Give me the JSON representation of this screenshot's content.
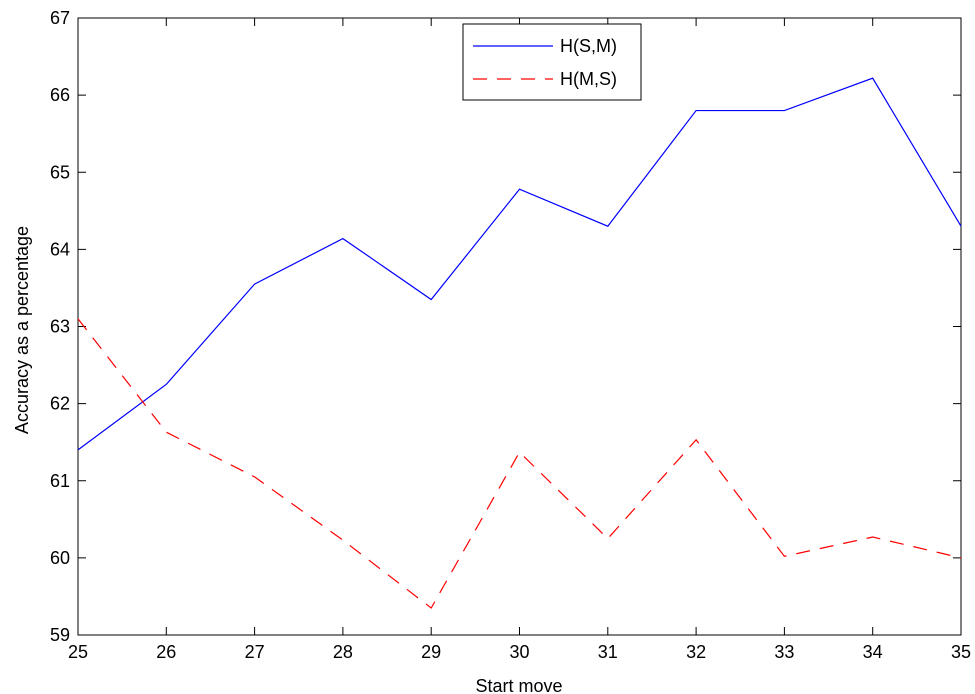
{
  "chart_data": {
    "type": "line",
    "title": "",
    "xlabel": "Start move",
    "ylabel": "Accuracy as a percentage",
    "x": [
      25,
      26,
      27,
      28,
      29,
      30,
      31,
      32,
      33,
      34,
      35
    ],
    "xlim": [
      25,
      35
    ],
    "ylim": [
      59,
      67
    ],
    "xticks": [
      "25",
      "26",
      "27",
      "28",
      "29",
      "30",
      "31",
      "32",
      "33",
      "34",
      "35"
    ],
    "yticks": [
      "59",
      "60",
      "61",
      "62",
      "63",
      "64",
      "65",
      "66",
      "67"
    ],
    "grid": false,
    "legend_position": "top-center",
    "series": [
      {
        "name": "H(S,M)",
        "color": "#0000ff",
        "style": "solid",
        "values": [
          61.4,
          62.25,
          63.55,
          64.14,
          63.35,
          64.78,
          64.3,
          65.8,
          65.8,
          66.22,
          64.3
        ]
      },
      {
        "name": "H(M,S)",
        "color": "#ff0000",
        "style": "dashed",
        "values": [
          63.1,
          61.63,
          61.05,
          60.23,
          59.35,
          61.37,
          60.25,
          61.53,
          60.02,
          60.27,
          60.0
        ]
      }
    ]
  }
}
